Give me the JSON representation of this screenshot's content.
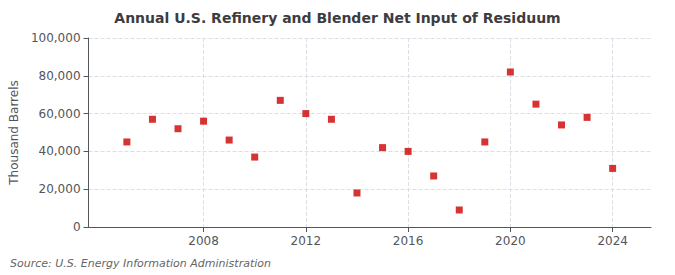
{
  "chart_data": {
    "type": "scatter",
    "title": "Annual U.S. Refinery and Blender Net Input of Residuum",
    "ylabel": "Thousand Barrels",
    "annotation": "Source: U.S. Energy Information Administration",
    "x": [
      2005,
      2006,
      2007,
      2008,
      2009,
      2010,
      2011,
      2012,
      2013,
      2014,
      2015,
      2016,
      2017,
      2018,
      2019,
      2020,
      2021,
      2022,
      2023,
      2024
    ],
    "values": [
      45000,
      57000,
      52000,
      56000,
      46000,
      37000,
      67000,
      60000,
      57000,
      18000,
      42000,
      40000,
      27000,
      9000,
      45000,
      82000,
      65000,
      54000,
      58000,
      31000
    ],
    "color": "#cc0000",
    "marker": "square",
    "xlim": [
      2003.5,
      2025.5
    ],
    "xticks": [
      2008,
      2012,
      2016,
      2020,
      2024
    ],
    "ylim": [
      0,
      100000
    ],
    "yticks": [
      0,
      {
        "value": 20000,
        "label": "20,000"
      },
      {
        "value": 40000,
        "label": "40,000"
      },
      {
        "value": 60000,
        "label": "60,000"
      },
      {
        "value": 80000,
        "label": "80,000"
      },
      {
        "value": 100000,
        "label": "100,000"
      }
    ],
    "grid": true
  }
}
